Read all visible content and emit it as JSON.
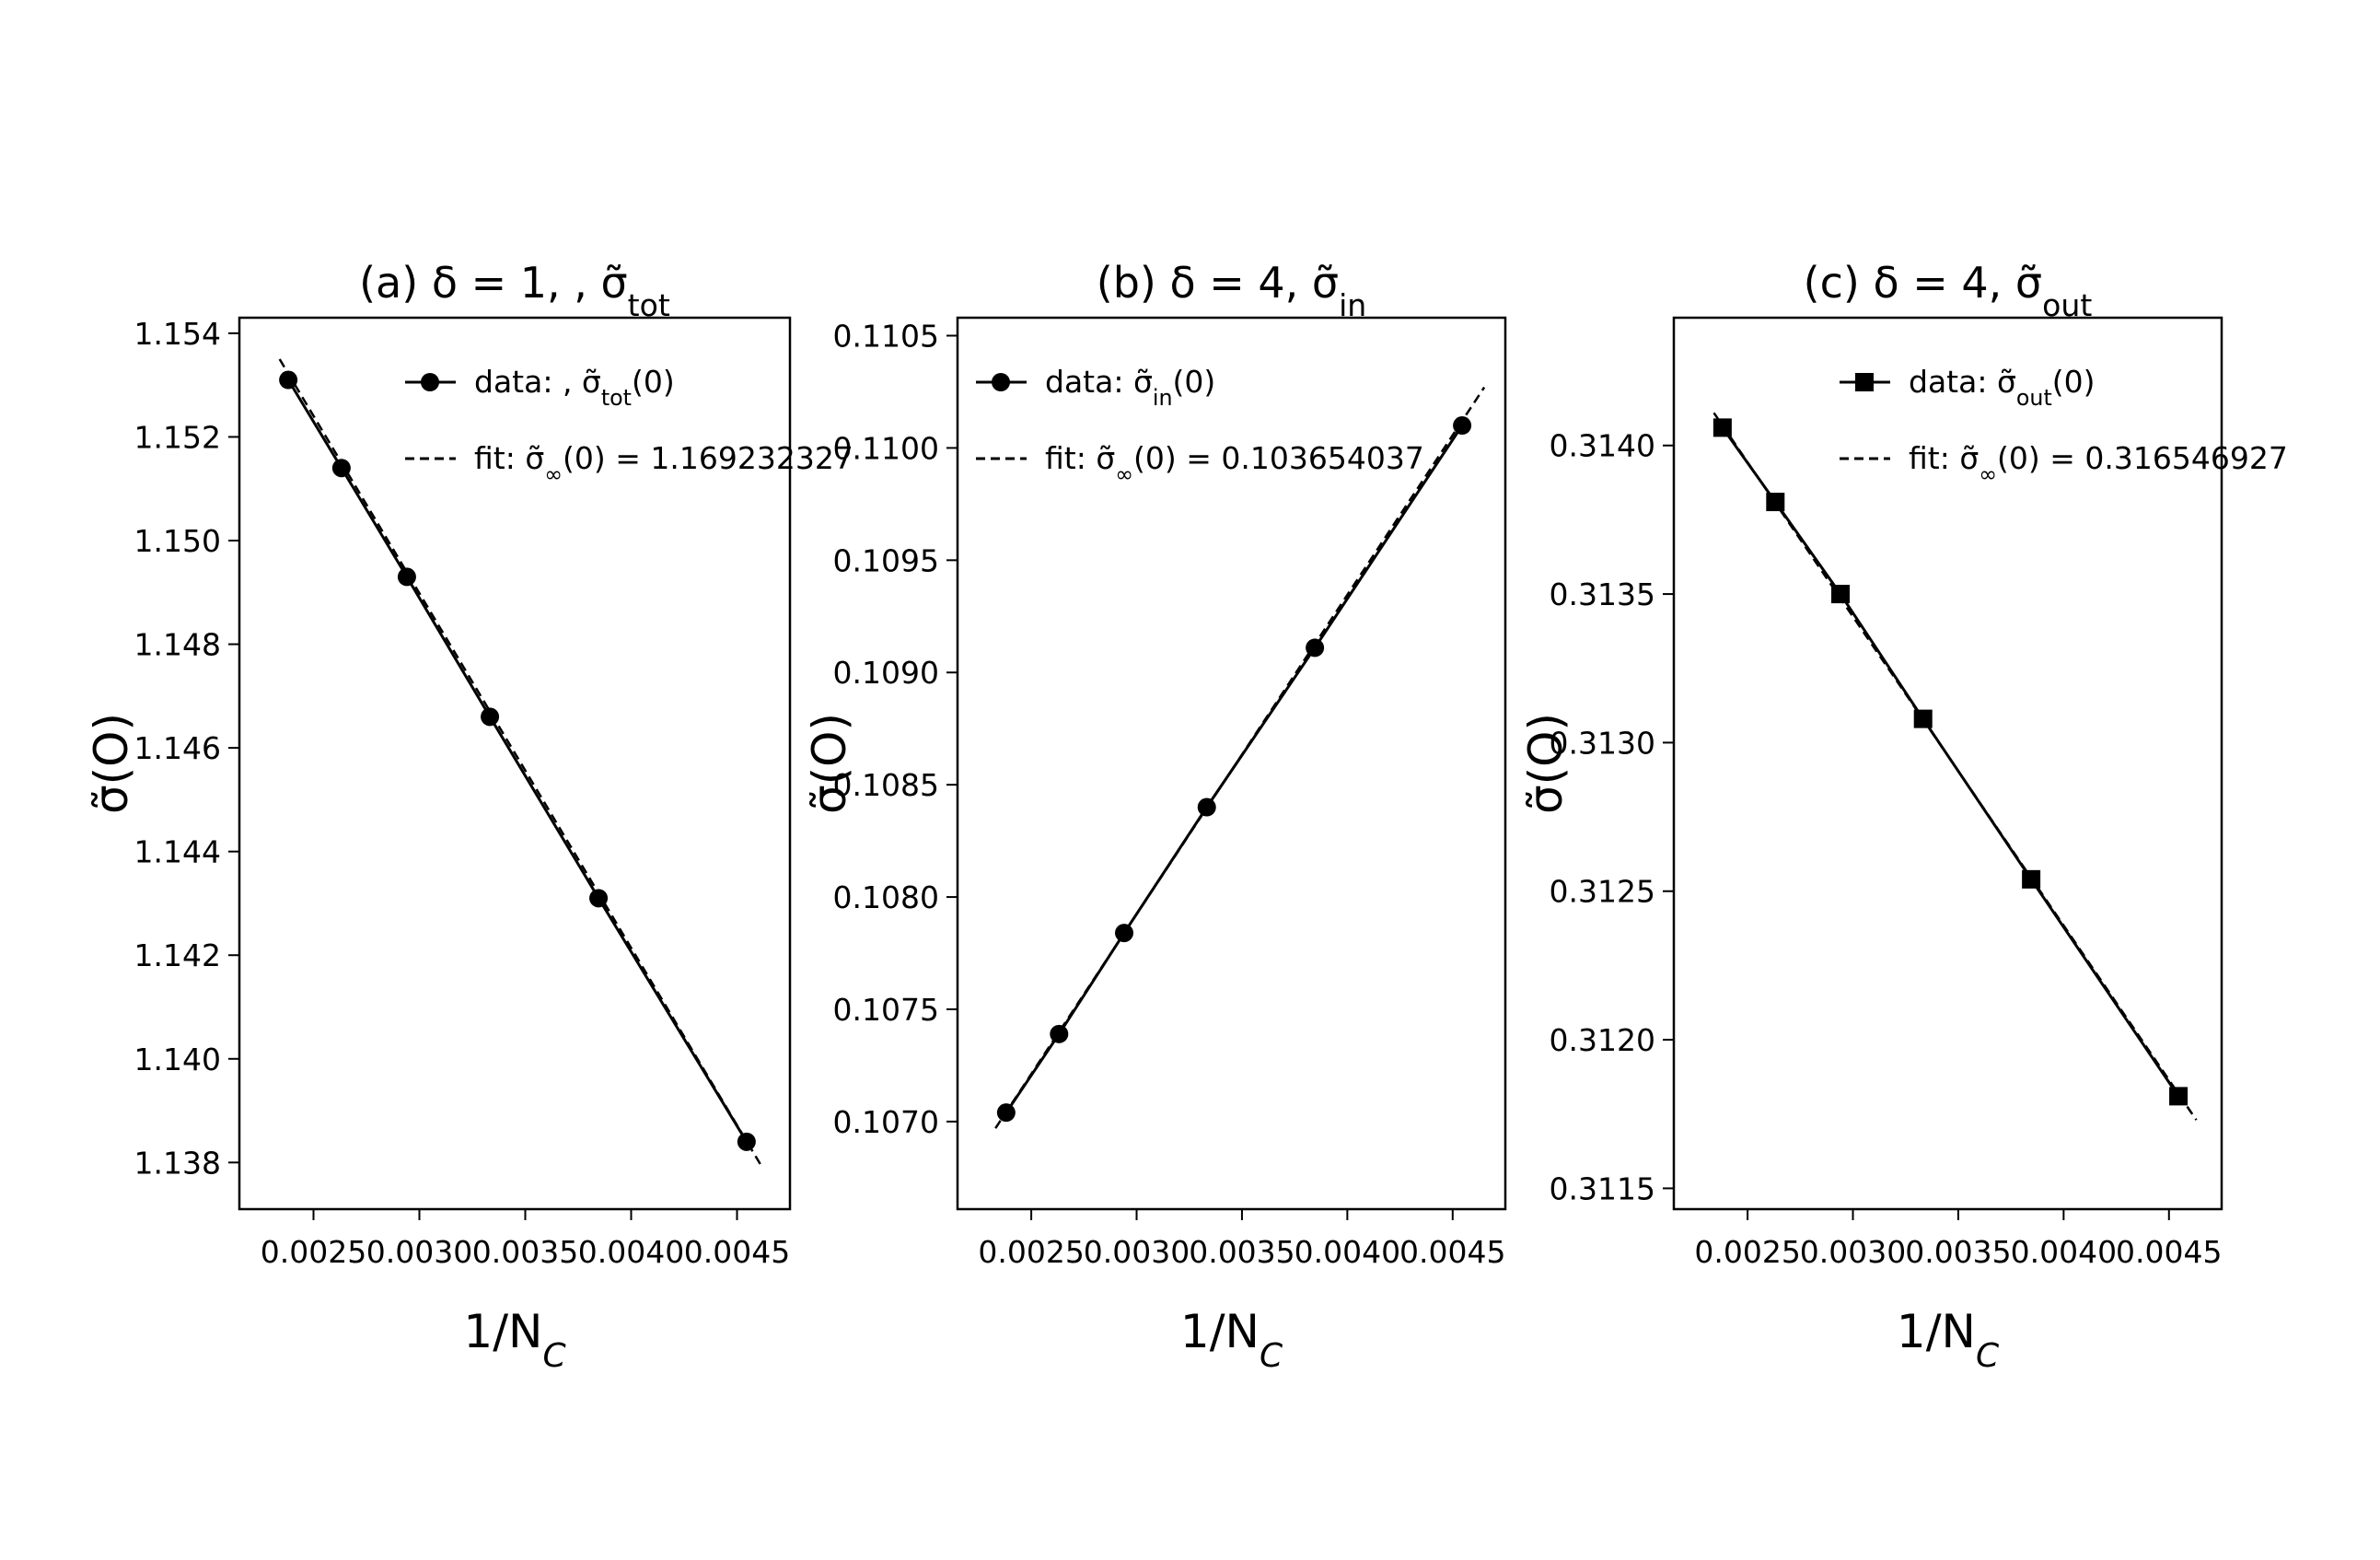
{
  "chart_data": [
    {
      "type": "line",
      "title": "(a) δ = 1,  , σ̃tot",
      "title_parts": {
        "main": "(a) δ = 1,  , σ̃",
        "sub": "tot"
      },
      "xlabel": "1/N",
      "xlabel_sub": "C",
      "ylabel": "σ̃(O)",
      "xlim": [
        0.00215,
        0.00475
      ],
      "ylim": [
        1.1371,
        1.1543
      ],
      "xticks": [
        "0.0025",
        "0.0030",
        "0.0035",
        "0.0040",
        "0.0045"
      ],
      "yticks": [
        "1.138",
        "1.140",
        "1.142",
        "1.144",
        "1.146",
        "1.148",
        "1.150",
        "1.152",
        "1.154"
      ],
      "legend_position": "top-right",
      "series": [
        {
          "name": "data: , σ̃tot(0)",
          "name_parts": {
            "main": "data: , σ̃",
            "sub": "tot",
            "tail": "(0)"
          },
          "marker": "circle",
          "style": "solid",
          "x": [
            0.002381,
            0.002632,
            0.002941,
            0.003333,
            0.003846,
            0.004545
          ],
          "y": [
            1.1531,
            1.1514,
            1.1493,
            1.1466,
            1.1431,
            1.1384
          ]
        },
        {
          "name": "fit: σ̃∞(0) = 1.169232327",
          "name_parts": {
            "main": "fit: σ̃",
            "sub": "∞",
            "tail": "(0) = 1.169232327"
          },
          "marker": "none",
          "style": "dashed",
          "x": [
            0.00234,
            0.00462
          ],
          "y": [
            1.1535,
            1.1379
          ]
        }
      ]
    },
    {
      "type": "line",
      "title": "(b) δ = 4,  σ̃in",
      "title_parts": {
        "main": "(b) δ = 4,  σ̃",
        "sub": "in"
      },
      "xlabel": "1/N",
      "xlabel_sub": "C",
      "ylabel": "σ̃(O)",
      "xlim": [
        0.00215,
        0.00475
      ],
      "ylim": [
        0.10661,
        0.11058
      ],
      "xticks": [
        "0.0025",
        "0.0030",
        "0.0035",
        "0.0040",
        "0.0045"
      ],
      "yticks": [
        "0.1070",
        "0.1075",
        "0.1080",
        "0.1085",
        "0.1090",
        "0.1095",
        "0.1100",
        "0.1105"
      ],
      "legend_position": "top-left",
      "series": [
        {
          "name": "data: σ̃in(0)",
          "name_parts": {
            "main": "data: σ̃",
            "sub": "in",
            "tail": "(0)"
          },
          "marker": "circle",
          "style": "solid",
          "x": [
            0.002381,
            0.002632,
            0.002941,
            0.003333,
            0.003846,
            0.004545
          ],
          "y": [
            0.10704,
            0.10739,
            0.10784,
            0.1084,
            0.10911,
            0.1101
          ]
        },
        {
          "name": "fit: σ̃∞(0) = 0.103654037",
          "name_parts": {
            "main": "fit: σ̃",
            "sub": "∞",
            "tail": "(0) = 0.103654037"
          },
          "marker": "none",
          "style": "dashed",
          "x": [
            0.00233,
            0.00465
          ],
          "y": [
            0.10697,
            0.11027
          ]
        }
      ]
    },
    {
      "type": "line",
      "title": "(c) δ = 4,  σ̃out",
      "title_parts": {
        "main": "(c) δ = 4,  σ̃",
        "sub": "out"
      },
      "xlabel": "1/N",
      "xlabel_sub": "C",
      "ylabel": "σ̃(O)",
      "xlim": [
        0.00215,
        0.00475
      ],
      "ylim": [
        0.31143,
        0.31443
      ],
      "xticks": [
        "0.0025",
        "0.0030",
        "0.0035",
        "0.0040",
        "0.0045"
      ],
      "yticks": [
        "0.3115",
        "0.3120",
        "0.3125",
        "0.3130",
        "0.3135",
        "0.3140"
      ],
      "legend_position": "top-right",
      "series": [
        {
          "name": "data: σ̃out(0)",
          "name_parts": {
            "main": "data: σ̃",
            "sub": "out",
            "tail": "(0)"
          },
          "marker": "square",
          "style": "solid",
          "x": [
            0.002381,
            0.002632,
            0.002941,
            0.003333,
            0.003846,
            0.004545
          ],
          "y": [
            0.31406,
            0.31381,
            0.3135,
            0.31308,
            0.31254,
            0.31181
          ]
        },
        {
          "name": "fit: σ̃∞(0) = 0.316546927",
          "name_parts": {
            "main": "fit: σ̃",
            "sub": "∞",
            "tail": "(0) = 0.316546927"
          },
          "marker": "none",
          "style": "dashed",
          "x": [
            0.00234,
            0.00463
          ],
          "y": [
            0.31411,
            0.31173
          ]
        }
      ]
    }
  ]
}
